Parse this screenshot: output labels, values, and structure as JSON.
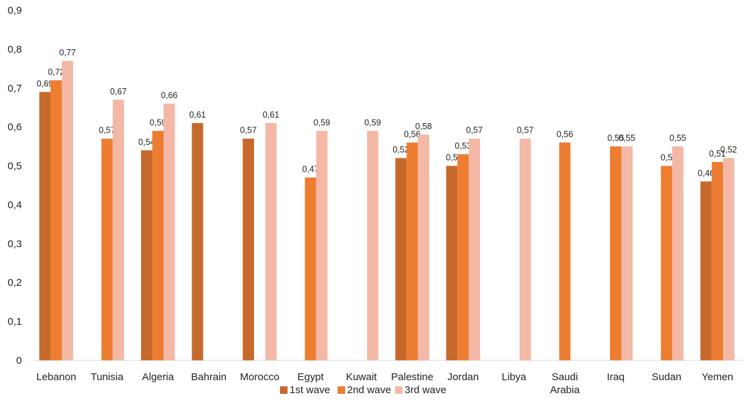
{
  "chart_data": {
    "type": "bar",
    "title": "",
    "xlabel": "",
    "ylabel": "",
    "ylim": [
      0,
      0.9
    ],
    "yticks": [
      "0",
      "0,1",
      "0,2",
      "0,3",
      "0,4",
      "0,5",
      "0,6",
      "0,7",
      "0,8",
      "0,9"
    ],
    "grid": false,
    "legend_position": "bottom",
    "categories": [
      [
        "Lebanon"
      ],
      [
        "Tunisia"
      ],
      [
        "Algeria"
      ],
      [
        "Bahrain"
      ],
      [
        "Morocco"
      ],
      [
        "Egypt"
      ],
      [
        "Kuwait"
      ],
      [
        "Palestine"
      ],
      [
        "Jordan"
      ],
      [
        "Libya"
      ],
      [
        "Saudi",
        "Arabia"
      ],
      [
        "Iraq"
      ],
      [
        "Sudan"
      ],
      [
        "Yemen"
      ]
    ],
    "series": [
      {
        "name": "1st wave",
        "color": "#c8692c",
        "values": [
          0.69,
          null,
          0.54,
          0.61,
          0.57,
          null,
          null,
          0.52,
          0.5,
          null,
          null,
          null,
          null,
          0.46
        ],
        "labels": [
          "0,69",
          null,
          "0,54",
          "0,61",
          "0,57",
          null,
          null,
          "0,52",
          "0,5",
          null,
          null,
          null,
          null,
          "0,46"
        ]
      },
      {
        "name": "2nd wave",
        "color": "#ed7d31",
        "values": [
          0.72,
          0.57,
          0.59,
          null,
          null,
          0.47,
          null,
          0.56,
          0.53,
          null,
          0.56,
          0.55,
          0.5,
          0.51
        ],
        "labels": [
          "0,72",
          "0,57",
          "0,59",
          null,
          null,
          "0,47",
          null,
          "0,56",
          "0,53",
          null,
          "0,56",
          "0,55",
          "0,5",
          "0,51"
        ]
      },
      {
        "name": "3rd wave",
        "color": "#f4b9a6",
        "values": [
          0.77,
          0.67,
          0.66,
          null,
          0.61,
          0.59,
          0.59,
          0.58,
          0.57,
          0.57,
          null,
          0.55,
          0.55,
          0.52
        ],
        "labels": [
          "0,77",
          "0,67",
          "0,66",
          null,
          "0,61",
          "0,59",
          "0,59",
          "0,58",
          "0,57",
          "0,57",
          null,
          "0,55",
          "0,55",
          "0,52"
        ]
      }
    ]
  }
}
